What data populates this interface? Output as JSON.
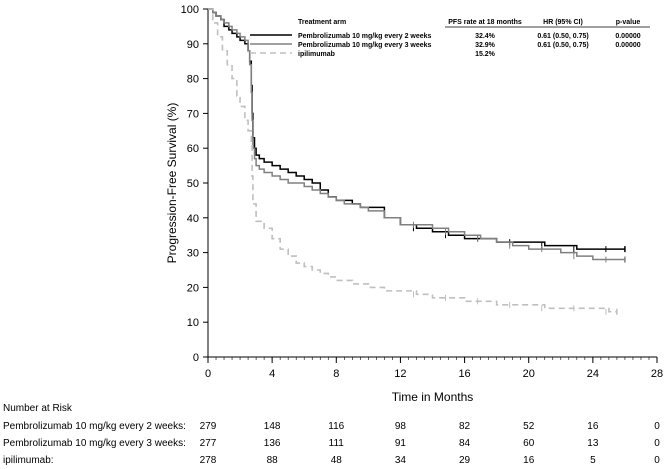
{
  "chart_data": {
    "type": "line",
    "title": "",
    "xlabel": "Time in Months",
    "ylabel": "Progression-Free Survival (%)",
    "xlim": [
      0,
      28
    ],
    "ylim": [
      0,
      100
    ],
    "x_ticks": [
      0,
      4,
      8,
      12,
      16,
      20,
      24,
      28
    ],
    "y_ticks": [
      0,
      10,
      20,
      30,
      40,
      50,
      60,
      70,
      80,
      90,
      100
    ],
    "grid": false,
    "legend": {
      "placement": "top-right",
      "headers": {
        "arm": "Treatment arm",
        "pfs": "PFS rate at 18 months",
        "hr": "HR (95% CI)",
        "p": "p-value"
      },
      "entries": [
        {
          "name": "Pembrolizumab 10 mg/kg every 2 weeks",
          "pfs": "32.4%",
          "hr": "0.61 (0.50, 0.75)",
          "p": "0.00000"
        },
        {
          "name": "Pembrolizumab 10 mg/kg every 3 weeks",
          "pfs": "32.9%",
          "hr": "0.61 (0.50, 0.75)",
          "p": "0.00000"
        },
        {
          "name": "ipilimumab",
          "pfs": "15.2%",
          "hr": "",
          "p": ""
        }
      ]
    },
    "series": [
      {
        "name": "Pembrolizumab 10 mg/kg every 2 weeks",
        "color": "#000000",
        "dash": "solid",
        "x": [
          0,
          0.3,
          0.5,
          0.8,
          1.0,
          1.3,
          1.5,
          1.8,
          2.0,
          2.3,
          2.5,
          2.6,
          2.7,
          2.75,
          2.8,
          2.9,
          3.0,
          3.2,
          3.5,
          4.0,
          4.5,
          5.0,
          5.5,
          6.0,
          6.5,
          7.0,
          7.5,
          8.0,
          8.5,
          9.0,
          9.5,
          10.0,
          11.0,
          12.0,
          13.0,
          14.0,
          15.0,
          16.0,
          17.0,
          18.0,
          19.0,
          20.0,
          21.0,
          22.0,
          23.0,
          24.0,
          25.0,
          26.0
        ],
        "y": [
          100,
          99,
          98,
          97,
          95,
          94,
          93,
          92,
          91,
          90,
          88,
          85,
          78,
          70,
          63,
          60,
          58,
          57,
          56,
          55,
          54,
          53,
          52,
          51,
          50,
          48,
          46,
          45,
          45,
          44,
          43,
          43,
          40,
          38,
          37,
          36,
          35,
          34,
          34,
          33,
          33,
          33,
          32,
          32,
          31,
          31,
          31,
          31
        ]
      },
      {
        "name": "Pembrolizumab 10 mg/kg every 3 weeks",
        "color": "#808080",
        "dash": "solid",
        "x": [
          0,
          0.3,
          0.5,
          0.8,
          1.0,
          1.3,
          1.5,
          1.8,
          2.0,
          2.3,
          2.5,
          2.6,
          2.7,
          2.75,
          2.8,
          2.9,
          3.0,
          3.2,
          3.5,
          4.0,
          4.5,
          5.0,
          5.5,
          6.0,
          6.5,
          7.0,
          7.5,
          8.0,
          8.5,
          9.0,
          9.5,
          10.0,
          11.0,
          12.0,
          13.0,
          14.0,
          15.0,
          16.0,
          17.0,
          18.0,
          19.0,
          20.0,
          21.0,
          22.0,
          23.0,
          24.0,
          25.0,
          26.0
        ],
        "y": [
          100,
          99,
          98,
          97,
          96,
          95,
          94,
          93,
          92,
          91,
          88,
          84,
          76,
          68,
          60,
          57,
          55,
          54,
          53,
          52,
          51,
          50,
          50,
          49,
          48,
          47,
          46,
          45,
          44,
          44,
          43,
          42,
          40,
          38,
          38,
          37,
          36,
          35,
          34,
          33,
          32,
          31,
          31,
          30,
          29,
          28,
          28,
          28
        ]
      },
      {
        "name": "ipilimumab",
        "color": "#bfbfbf",
        "dash": "dashed",
        "x": [
          0,
          0.3,
          0.6,
          0.9,
          1.2,
          1.5,
          1.8,
          2.0,
          2.3,
          2.5,
          2.7,
          2.75,
          2.8,
          3.0,
          3.5,
          4.0,
          4.5,
          5.0,
          5.5,
          6.0,
          6.5,
          7.0,
          7.5,
          8.0,
          9.0,
          10.0,
          11.0,
          12.0,
          13.0,
          14.0,
          15.0,
          16.0,
          17.0,
          18.0,
          19.0,
          20.0,
          21.0,
          22.0,
          23.0,
          24.0,
          25.0,
          25.5
        ],
        "y": [
          100,
          96,
          92,
          88,
          84,
          80,
          75,
          72,
          68,
          65,
          62,
          52,
          44,
          39,
          37,
          34,
          31,
          29,
          27,
          26,
          25,
          24,
          23,
          22,
          21,
          20,
          19,
          19,
          18,
          17,
          17,
          16,
          16,
          15,
          15,
          15,
          14,
          14,
          14,
          14,
          13,
          13
        ]
      }
    ],
    "number_at_risk": {
      "title": "Number at Risk",
      "times": [
        0,
        4,
        8,
        12,
        16,
        20,
        24,
        28
      ],
      "rows": [
        {
          "label": "Pembrolizumab 10 mg/kg every 2 weeks:",
          "values": [
            "279",
            "148",
            "116",
            "98",
            "82",
            "52",
            "16",
            "0"
          ]
        },
        {
          "label": "Pembrolizumab 10 mg/kg every 3 weeks:",
          "values": [
            "277",
            "136",
            "111",
            "91",
            "84",
            "60",
            "13",
            "0"
          ]
        },
        {
          "label": "ipilimumab:",
          "values": [
            "278",
            "88",
            "48",
            "34",
            "29",
            "16",
            "5",
            "0"
          ]
        }
      ]
    }
  }
}
